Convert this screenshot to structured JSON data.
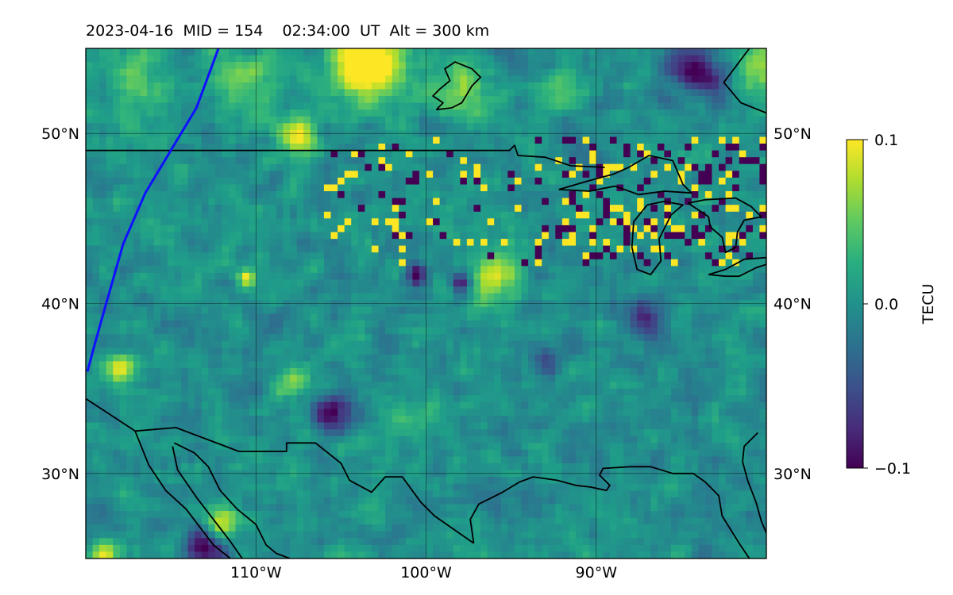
{
  "title": "2023-04-16  MID = 154    02:34:00  UT  Alt = 300 km",
  "map": {
    "projection": "PlateCarree",
    "lon_range": [
      -120,
      -80
    ],
    "lat_range": [
      25,
      55
    ],
    "lon_ticks": [
      {
        "value": -110,
        "label": "110°W"
      },
      {
        "value": -100,
        "label": "100°W"
      },
      {
        "value": -90,
        "label": "90°W"
      }
    ],
    "lat_ticks": [
      {
        "value": 50,
        "label": "50°N"
      },
      {
        "value": 40,
        "label": "40°N"
      },
      {
        "value": 30,
        "label": "30°N"
      }
    ],
    "gridlines": true,
    "colormap": "viridis",
    "background_field": "detrended TEC perturbation",
    "terminator_color": "#1010ff",
    "boundary_color": "#000000"
  },
  "colorbar": {
    "label": "TECU",
    "min": -0.1,
    "max": 0.1,
    "ticks": [
      {
        "value": 0.1,
        "label": "0.1"
      },
      {
        "value": 0.0,
        "label": "0.0"
      },
      {
        "value": -0.1,
        "label": "−0.1"
      }
    ]
  },
  "terminator": [
    [
      -119.9,
      36.0
    ],
    [
      -119.5,
      37.5
    ],
    [
      -118.8,
      40.0
    ],
    [
      -117.8,
      43.5
    ],
    [
      -116.5,
      46.5
    ],
    [
      -115.0,
      49.0
    ],
    [
      -113.5,
      51.5
    ],
    [
      -112.2,
      55.0
    ]
  ],
  "boundaries": [
    {
      "name": "us-canada-border",
      "points": [
        [
          -120,
          49.0
        ],
        [
          -95.1,
          49.0
        ],
        [
          -94.8,
          49.3
        ],
        [
          -94.6,
          48.7
        ],
        [
          -93.0,
          48.6
        ],
        [
          -91.5,
          48.1
        ],
        [
          -89.5,
          48.0
        ]
      ]
    },
    {
      "name": "lake-winnipeg",
      "points": [
        [
          -99.4,
          51.4
        ],
        [
          -98.5,
          51.5
        ],
        [
          -97.9,
          51.8
        ],
        [
          -97.3,
          52.8
        ],
        [
          -96.8,
          53.3
        ],
        [
          -97.3,
          53.8
        ],
        [
          -98.3,
          54.2
        ],
        [
          -98.9,
          53.8
        ],
        [
          -98.6,
          53.1
        ],
        [
          -99.2,
          52.6
        ],
        [
          -99.6,
          52.2
        ],
        [
          -99.0,
          51.8
        ],
        [
          -99.4,
          51.4
        ]
      ]
    },
    {
      "name": "lake-superior",
      "points": [
        [
          -92.2,
          46.7
        ],
        [
          -90.5,
          47.2
        ],
        [
          -89.0,
          47.6
        ],
        [
          -88.1,
          48.0
        ],
        [
          -86.9,
          48.7
        ],
        [
          -85.5,
          48.4
        ],
        [
          -84.9,
          47.0
        ],
        [
          -84.4,
          46.5
        ],
        [
          -86.0,
          46.6
        ],
        [
          -87.5,
          46.4
        ],
        [
          -88.9,
          46.9
        ],
        [
          -90.4,
          46.6
        ],
        [
          -92.2,
          46.7
        ]
      ]
    },
    {
      "name": "lake-michigan",
      "points": [
        [
          -87.0,
          45.8
        ],
        [
          -87.8,
          44.8
        ],
        [
          -87.9,
          43.3
        ],
        [
          -87.6,
          42.0
        ],
        [
          -86.8,
          41.7
        ],
        [
          -86.2,
          42.5
        ],
        [
          -86.3,
          43.8
        ],
        [
          -85.6,
          45.2
        ],
        [
          -84.9,
          45.8
        ],
        [
          -86.0,
          46.0
        ],
        [
          -87.0,
          45.8
        ]
      ]
    },
    {
      "name": "lake-huron",
      "points": [
        [
          -84.6,
          45.9
        ],
        [
          -83.6,
          46.1
        ],
        [
          -81.8,
          46.2
        ],
        [
          -80.9,
          45.7
        ],
        [
          -80.3,
          45.1
        ],
        [
          -81.3,
          44.9
        ],
        [
          -81.7,
          44.2
        ],
        [
          -81.8,
          43.3
        ],
        [
          -82.4,
          43.0
        ],
        [
          -82.6,
          43.9
        ],
        [
          -83.3,
          44.5
        ],
        [
          -83.4,
          45.1
        ],
        [
          -84.6,
          45.9
        ]
      ]
    },
    {
      "name": "lake-erie",
      "points": [
        [
          -83.4,
          41.7
        ],
        [
          -82.4,
          41.6
        ],
        [
          -81.6,
          41.6
        ],
        [
          -80.6,
          42.1
        ],
        [
          -80.0,
          42.3
        ],
        [
          -80.0,
          42.7
        ],
        [
          -81.3,
          42.6
        ],
        [
          -82.4,
          42.0
        ],
        [
          -83.4,
          41.7
        ]
      ]
    },
    {
      "name": "james-bay-coast",
      "points": [
        [
          -81.0,
          55.0
        ],
        [
          -82.5,
          53.0
        ],
        [
          -81.5,
          51.8
        ],
        [
          -80.0,
          51.2
        ]
      ]
    },
    {
      "name": "us-mexico-border",
      "points": [
        [
          -120,
          34.4
        ],
        [
          -117.1,
          32.5
        ],
        [
          -114.7,
          32.7
        ],
        [
          -111.0,
          31.3
        ],
        [
          -108.2,
          31.3
        ],
        [
          -108.2,
          31.8
        ],
        [
          -106.5,
          31.8
        ],
        [
          -105.0,
          30.6
        ],
        [
          -104.5,
          29.6
        ],
        [
          -103.2,
          28.9
        ],
        [
          -102.4,
          29.8
        ],
        [
          -101.4,
          29.8
        ],
        [
          -100.3,
          28.3
        ],
        [
          -99.5,
          27.5
        ],
        [
          -97.2,
          25.9
        ]
      ]
    },
    {
      "name": "baja-california-gulf-coast",
      "points": [
        [
          -114.9,
          31.6
        ],
        [
          -114.6,
          30.2
        ],
        [
          -113.5,
          28.6
        ],
        [
          -112.5,
          27.3
        ],
        [
          -111.5,
          26.0
        ],
        [
          -110.8,
          25.0
        ]
      ]
    },
    {
      "name": "sonora-coast",
      "points": [
        [
          -114.8,
          31.8
        ],
        [
          -113.6,
          31.2
        ],
        [
          -112.8,
          30.4
        ],
        [
          -112.1,
          29.0
        ],
        [
          -111.1,
          27.9
        ],
        [
          -110.0,
          27.0
        ],
        [
          -109.4,
          25.8
        ],
        [
          -108.8,
          25.3
        ],
        [
          -108.0,
          25.0
        ]
      ]
    },
    {
      "name": "baja-pacific-coast",
      "points": [
        [
          -117.1,
          32.5
        ],
        [
          -116.3,
          30.5
        ],
        [
          -115.3,
          29.0
        ],
        [
          -114.1,
          27.9
        ],
        [
          -112.5,
          25.8
        ],
        [
          -111.5,
          25.0
        ]
      ]
    },
    {
      "name": "gulf-of-mexico-coast",
      "points": [
        [
          -97.2,
          25.9
        ],
        [
          -97.4,
          27.3
        ],
        [
          -96.9,
          28.2
        ],
        [
          -95.5,
          28.9
        ],
        [
          -94.5,
          29.5
        ],
        [
          -93.7,
          29.8
        ],
        [
          -92.3,
          29.6
        ],
        [
          -91.2,
          29.3
        ],
        [
          -90.3,
          29.2
        ],
        [
          -89.4,
          29.0
        ],
        [
          -89.2,
          29.3
        ],
        [
          -89.8,
          29.9
        ],
        [
          -89.6,
          30.3
        ],
        [
          -88.0,
          30.4
        ],
        [
          -86.8,
          30.4
        ],
        [
          -85.5,
          30.0
        ],
        [
          -84.3,
          30.0
        ],
        [
          -83.6,
          29.5
        ],
        [
          -82.8,
          28.7
        ],
        [
          -82.6,
          27.5
        ],
        [
          -81.6,
          25.9
        ],
        [
          -81.0,
          25.0
        ]
      ]
    },
    {
      "name": "florida-atlantic-coast",
      "points": [
        [
          -80.0,
          26.5
        ],
        [
          -80.3,
          27.2
        ],
        [
          -80.6,
          28.3
        ],
        [
          -81.1,
          29.6
        ],
        [
          -81.4,
          30.7
        ],
        [
          -81.3,
          31.6
        ],
        [
          -80.5,
          32.4
        ]
      ]
    }
  ],
  "anomalies": [
    {
      "lon": -107.5,
      "lat": 49.8,
      "r": 1.2,
      "value": 0.1
    },
    {
      "lon": -103.5,
      "lat": 53.5,
      "r": 2.2,
      "value": 0.08
    },
    {
      "lon": -103.5,
      "lat": 54.8,
      "r": 1.6,
      "value": 0.1
    },
    {
      "lon": -110.5,
      "lat": 53.0,
      "r": 1.8,
      "value": 0.05
    },
    {
      "lon": -98.0,
      "lat": 52.5,
      "r": 2.0,
      "value": 0.055
    },
    {
      "lon": -92.0,
      "lat": 52.5,
      "r": 1.3,
      "value": 0.05
    },
    {
      "lon": -84.5,
      "lat": 54.0,
      "r": 1.4,
      "value": -0.09
    },
    {
      "lon": -83.0,
      "lat": 52.8,
      "r": 1.0,
      "value": -0.07
    },
    {
      "lon": -80.5,
      "lat": 53.8,
      "r": 1.5,
      "value": 0.06
    },
    {
      "lon": -117.0,
      "lat": 53.0,
      "r": 2.2,
      "value": 0.04
    },
    {
      "lon": -118.0,
      "lat": 36.2,
      "r": 0.8,
      "value": 0.1
    },
    {
      "lon": -119.0,
      "lat": 25.3,
      "r": 0.8,
      "value": 0.1
    },
    {
      "lon": -112.0,
      "lat": 27.2,
      "r": 1.0,
      "value": 0.09
    },
    {
      "lon": -113.0,
      "lat": 25.6,
      "r": 1.2,
      "value": -0.1
    },
    {
      "lon": -105.5,
      "lat": 33.6,
      "r": 1.2,
      "value": -0.09
    },
    {
      "lon": -96.0,
      "lat": 41.8,
      "r": 1.6,
      "value": 0.07
    },
    {
      "lon": -100.5,
      "lat": 41.7,
      "r": 0.6,
      "value": -0.1
    },
    {
      "lon": -98.0,
      "lat": 41.2,
      "r": 0.6,
      "value": -0.1
    },
    {
      "lon": -110.5,
      "lat": 41.5,
      "r": 0.5,
      "value": 0.1
    },
    {
      "lon": -93.0,
      "lat": 36.5,
      "r": 1.0,
      "value": -0.06
    },
    {
      "lon": -87.0,
      "lat": 39.2,
      "r": 1.2,
      "value": -0.06
    },
    {
      "lon": -101.5,
      "lat": 33.0,
      "r": 1.0,
      "value": 0.05
    },
    {
      "lon": -107.5,
      "lat": 35.2,
      "r": 1.1,
      "value": 0.05
    }
  ],
  "speckle_region": {
    "lon_range": [
      -106,
      -80
    ],
    "lat_range": [
      42,
      50
    ],
    "amplitude": 0.1
  }
}
